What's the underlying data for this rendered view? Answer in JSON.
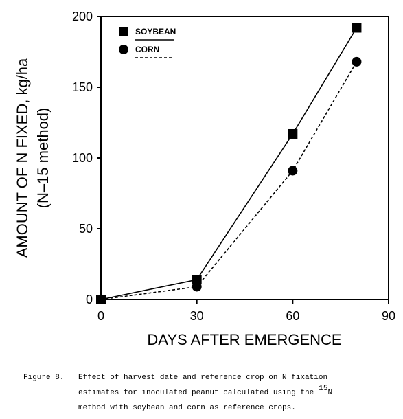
{
  "chart_data": {
    "type": "line",
    "x": [
      0,
      30,
      60,
      80
    ],
    "series": [
      {
        "name": "SOYBEAN",
        "color": "#000000",
        "marker": "square",
        "dash": false,
        "values": [
          0,
          14,
          117,
          192
        ]
      },
      {
        "name": "CORN",
        "color": "#000000",
        "marker": "circle",
        "dash": true,
        "values": [
          0,
          9,
          91,
          168
        ]
      }
    ],
    "xlim": [
      0,
      90
    ],
    "xticks": [
      0,
      30,
      60,
      90
    ],
    "ylim": [
      0,
      200
    ],
    "yticks": [
      0,
      50,
      100,
      150,
      200
    ],
    "xlabel": "DAYS AFTER EMERGENCE",
    "ylabel": [
      "AMOUNT OF N FIXED, kg/ha",
      "(N–15 method)"
    ],
    "legend": "upper left",
    "grid": false,
    "caption": {
      "label": "Figure 8.",
      "lines": [
        "Effect of harvest date and reference crop on N fixation",
        "estimates for inoculated peanut calculated using the",
        "method with soybean and corn as reference crops."
      ],
      "superscript": "15",
      "superscript_base": "N"
    }
  }
}
